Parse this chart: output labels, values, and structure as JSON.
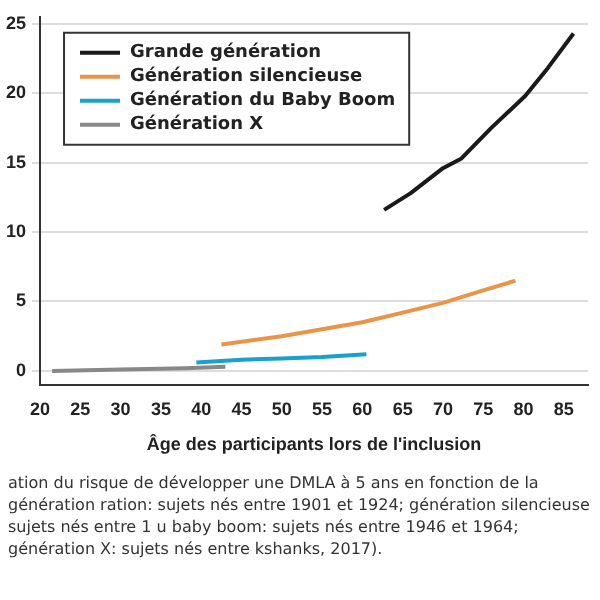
{
  "chart_data": {
    "type": "line",
    "xlabel": "Âge des participants lors de l'inclusion",
    "xlim": [
      20,
      88
    ],
    "xticks": [
      20,
      25,
      30,
      35,
      40,
      45,
      50,
      55,
      60,
      65,
      70,
      75,
      80,
      85
    ],
    "ylim": [
      -1,
      25.5
    ],
    "yticks": [
      0,
      5,
      10,
      15,
      20,
      25
    ],
    "grid": "y",
    "legend": "top left",
    "marker": "none",
    "line_style": "solid",
    "series": [
      {
        "name": "Grande génération",
        "color": "#1a1a1a",
        "x": [
          62.7,
          66,
          70,
          72.3,
          76,
          80.2,
          83,
          86.2
        ],
        "values": [
          11.6,
          12.8,
          14.6,
          15.3,
          17.5,
          19.8,
          21.8,
          24.3
        ]
      },
      {
        "name": "Génération silencieuse",
        "color": "#e8954a",
        "x": [
          42.5,
          50,
          55,
          60,
          65,
          70,
          75,
          79
        ],
        "values": [
          1.9,
          2.5,
          3,
          3.5,
          4.2,
          4.9,
          5.8,
          6.5
        ]
      },
      {
        "name": "Génération du Baby Boom",
        "color": "#1aa0d0",
        "x": [
          39.4,
          45,
          50,
          55,
          60.5
        ],
        "values": [
          0.6,
          0.8,
          0.9,
          1.0,
          1.2
        ]
      },
      {
        "name": "Génération X",
        "color": "#888888",
        "x": [
          21.5,
          30,
          38,
          43
        ],
        "values": [
          0,
          0.1,
          0.2,
          0.3
        ]
      }
    ],
    "annotations": [
      "ation du risque de développer une DMLA à 5 ans en fonction de la génération ration: sujets nés entre 1901 et 1924; génération silencieuse sujets nés entre 1 u baby boom: sujets nés entre 1946 et 1964; génération X: sujets nés entre kshanks, 2017)."
    ]
  }
}
